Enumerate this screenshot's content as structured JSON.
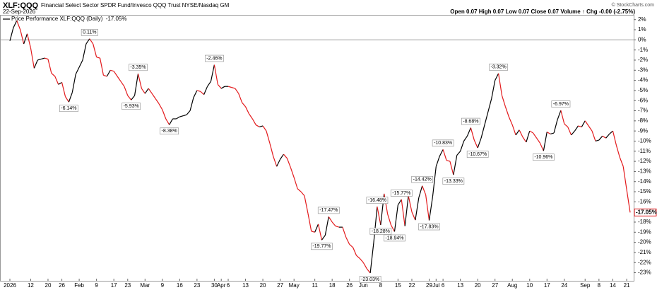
{
  "chart_data": {
    "type": "line",
    "title": "XLF:QQQ",
    "subtitle": "Financial Select Sector SPDR Fund/Invesco QQQ Trust NYSE/Nasdaq GM",
    "date": "22-Sep-2026",
    "quote": "Open 0.07 High 0.07 Low 0.07 Close 0.07 Volume ↑ Chg -0.00 (-2.75%)",
    "credit": "© StockCharts.com",
    "x": [
      "2026",
      null,
      null,
      null,
      null,
      null,
      "12",
      null,
      null,
      null,
      null,
      "20",
      null,
      null,
      null,
      "26",
      null,
      null,
      null,
      null,
      "Feb",
      null,
      null,
      null,
      null,
      "9",
      null,
      null,
      null,
      null,
      "17",
      null,
      null,
      null,
      "23",
      null,
      null,
      null,
      null,
      "Mar",
      null,
      null,
      null,
      null,
      "9",
      null,
      null,
      null,
      null,
      "16",
      null,
      null,
      null,
      null,
      "23",
      null,
      null,
      null,
      null,
      "30",
      null,
      "Apr",
      null,
      "6",
      null,
      null,
      null,
      null,
      "13",
      null,
      null,
      null,
      null,
      "20",
      null,
      null,
      null,
      null,
      "27",
      null,
      null,
      null,
      "May",
      null,
      null,
      null,
      null,
      null,
      "11",
      null,
      null,
      null,
      null,
      "18",
      null,
      null,
      null,
      null,
      "26",
      null,
      null,
      null,
      "Jun",
      null,
      null,
      null,
      null,
      "8",
      null,
      null,
      null,
      null,
      "15",
      null,
      null,
      null,
      "22",
      null,
      null,
      null,
      null,
      "29",
      null,
      "Jul",
      null,
      "6",
      null,
      null,
      null,
      null,
      "13",
      null,
      null,
      null,
      null,
      "20",
      null,
      null,
      null,
      null,
      "27",
      null,
      null,
      null,
      null,
      "Aug",
      null,
      null,
      null,
      null,
      "10",
      null,
      null,
      null,
      null,
      "17",
      null,
      null,
      null,
      null,
      "24",
      null,
      null,
      null,
      null,
      null,
      "Sep",
      null,
      null,
      null,
      "8",
      null,
      null,
      null,
      "14",
      null,
      null,
      null,
      "21",
      null
    ],
    "series": [
      {
        "name": "Price Performance XLF:QQQ (Daily)",
        "up_color": "#000000",
        "down_color": "#e31a1c",
        "values": [
          -0.1,
          1.2,
          1.9,
          1.0,
          -0.4,
          0.6,
          -0.8,
          -2.8,
          -2.0,
          -1.9,
          -1.8,
          -1.9,
          -3.3,
          -3.6,
          -4.4,
          -4.2,
          -5.6,
          -6.14,
          -5.2,
          -3.4,
          -2.7,
          -2.0,
          -0.4,
          0.11,
          -0.4,
          -1.7,
          -1.8,
          -3.5,
          -3.6,
          -3.0,
          -3.1,
          -3.6,
          -4.1,
          -4.6,
          -5.5,
          -5.93,
          -5.5,
          -3.35,
          -4.8,
          -5.3,
          -4.8,
          -5.3,
          -5.8,
          -6.3,
          -6.9,
          -7.8,
          -8.38,
          -7.8,
          -7.8,
          -7.6,
          -7.5,
          -7.4,
          -7.0,
          -5.7,
          -5.0,
          -5.1,
          -5.4,
          -4.6,
          -4.1,
          -2.46,
          -4.4,
          -4.8,
          -4.6,
          -4.6,
          -4.7,
          -4.8,
          -5.3,
          -6.2,
          -6.6,
          -7.3,
          -7.8,
          -8.4,
          -8.6,
          -8.5,
          -9.0,
          -10.2,
          -11.5,
          -12.5,
          -11.8,
          -11.3,
          -11.7,
          -12.6,
          -13.6,
          -14.7,
          -15.0,
          -15.4,
          -17.1,
          -18.9,
          -19.0,
          -18.2,
          -19.77,
          -19.3,
          -17.47,
          -18.0,
          -18.4,
          -18.5,
          -18.5,
          -19.5,
          -20.2,
          -20.5,
          -21.3,
          -21.6,
          -22.0,
          -22.6,
          -23.03,
          -20.0,
          -16.48,
          -18.28,
          -15.2,
          -17.2,
          -18.3,
          -18.94,
          -16.3,
          -15.77,
          -18.4,
          -15.4,
          -17.0,
          -17.8,
          -15.6,
          -14.42,
          -15.3,
          -17.83,
          -15.5,
          -12.5,
          -11.5,
          -10.83,
          -11.9,
          -12.0,
          -13.33,
          -11.4,
          -11.0,
          -10.0,
          -9.5,
          -8.68,
          -9.9,
          -10.67,
          -9.7,
          -8.4,
          -7.1,
          -5.8,
          -4.0,
          -3.32,
          -5.5,
          -6.6,
          -7.6,
          -8.4,
          -9.4,
          -8.9,
          -9.6,
          -10.1,
          -9.0,
          -9.2,
          -9.7,
          -10.2,
          -10.96,
          -9.1,
          -9.3,
          -9.2,
          -7.9,
          -6.97,
          -8.3,
          -8.6,
          -9.4,
          -9.0,
          -8.5,
          -8.6,
          -8.0,
          -8.5,
          -9.0,
          -10.0,
          -9.9,
          -9.5,
          -9.7,
          -9.3,
          -9.0,
          -10.4,
          -11.6,
          -12.5,
          -14.8,
          -17.05
        ],
        "value_labels": [
          null,
          null,
          null,
          null,
          null,
          null,
          null,
          null,
          null,
          null,
          null,
          null,
          null,
          null,
          null,
          null,
          null,
          "-6.14%",
          null,
          null,
          null,
          null,
          null,
          "0.11%",
          null,
          null,
          null,
          null,
          null,
          null,
          null,
          null,
          null,
          null,
          null,
          "-5.93%",
          null,
          "-3.35%",
          null,
          null,
          null,
          null,
          null,
          null,
          null,
          null,
          "-8.38%",
          null,
          null,
          null,
          null,
          null,
          null,
          null,
          null,
          null,
          null,
          null,
          null,
          "-2.46%",
          null,
          null,
          null,
          null,
          null,
          null,
          null,
          null,
          null,
          null,
          null,
          null,
          null,
          null,
          null,
          null,
          null,
          null,
          null,
          null,
          null,
          null,
          null,
          null,
          null,
          null,
          null,
          null,
          null,
          null,
          "-19.77%",
          null,
          "-17.47%",
          null,
          null,
          null,
          null,
          null,
          null,
          null,
          null,
          null,
          null,
          null,
          "-23.03%",
          null,
          "-16.48%",
          "-18.28%",
          null,
          null,
          null,
          "-18.94%",
          null,
          "-15.77%",
          null,
          null,
          null,
          null,
          null,
          "-14.42%",
          null,
          "-17.83%",
          null,
          null,
          null,
          "-10.83%",
          null,
          null,
          "-13.33%",
          null,
          null,
          null,
          null,
          "-8.68%",
          null,
          "-10.67%",
          null,
          null,
          null,
          null,
          null,
          "-3.32%",
          null,
          null,
          null,
          null,
          null,
          null,
          null,
          null,
          null,
          null,
          null,
          null,
          "-10.96%",
          null,
          null,
          null,
          null,
          "-6.97%",
          null,
          null,
          null,
          null,
          null,
          null,
          null,
          null,
          null,
          null,
          null,
          null,
          null,
          null,
          null,
          null,
          null,
          null,
          null,
          "-17.05%"
        ]
      }
    ],
    "ylim": [
      -23.8,
      2.4
    ],
    "yticks": [
      {
        "value": 2,
        "label": "2%"
      },
      {
        "value": 1,
        "label": "1%"
      },
      {
        "value": 0,
        "label": "0%"
      },
      {
        "value": -1,
        "label": "-1%"
      },
      {
        "value": -2,
        "label": "-2%"
      },
      {
        "value": -3,
        "label": "-3%"
      },
      {
        "value": -4,
        "label": "-4%"
      },
      {
        "value": -5,
        "label": "-5%"
      },
      {
        "value": -6,
        "label": "-6%"
      },
      {
        "value": -7,
        "label": "-7%"
      },
      {
        "value": -8,
        "label": "-8%"
      },
      {
        "value": -9,
        "label": "-9%"
      },
      {
        "value": -10,
        "label": "-10%"
      },
      {
        "value": -11,
        "label": "-11%"
      },
      {
        "value": -12,
        "label": "-12%"
      },
      {
        "value": -13,
        "label": "-13%"
      },
      {
        "value": -14,
        "label": "-14%"
      },
      {
        "value": -15,
        "label": "-15%"
      },
      {
        "value": -16,
        "label": "-16%"
      },
      {
        "value": -17,
        "label": "-17%"
      },
      {
        "value": -18,
        "label": "-18%"
      },
      {
        "value": -19,
        "label": "-19%"
      },
      {
        "value": -20,
        "label": "-20%"
      },
      {
        "value": -21,
        "label": "-21%"
      },
      {
        "value": -22,
        "label": "-22%"
      },
      {
        "value": -23,
        "label": "-23%"
      }
    ],
    "zero_line": true,
    "grid": false
  }
}
